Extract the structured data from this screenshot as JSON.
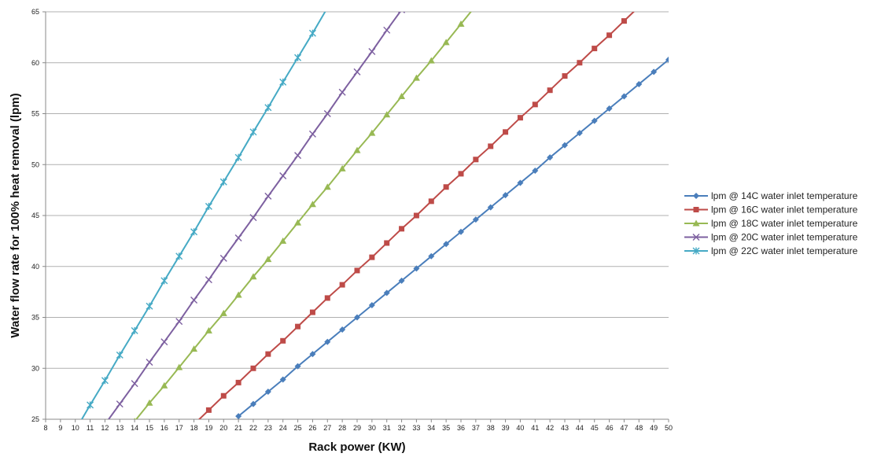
{
  "chart_data": {
    "type": "line",
    "xlabel": "Rack power  (KW)",
    "ylabel": "Water flow rate  for 100% heat removal  (lpm)",
    "xlim": [
      8,
      50
    ],
    "ylim": [
      25,
      65
    ],
    "xticks": [
      8,
      9,
      10,
      11,
      12,
      13,
      14,
      15,
      16,
      17,
      18,
      19,
      20,
      21,
      22,
      23,
      24,
      25,
      26,
      27,
      28,
      29,
      30,
      31,
      32,
      33,
      34,
      35,
      36,
      37,
      38,
      39,
      40,
      41,
      42,
      43,
      44,
      45,
      46,
      47,
      48,
      49,
      50
    ],
    "yticks": [
      25,
      30,
      35,
      40,
      45,
      50,
      55,
      60,
      65
    ],
    "grid": "horizontal",
    "legend_position": "right",
    "series": [
      {
        "name": "lpm @ 14C water inlet temperature",
        "color": "#4a7ebb",
        "marker": "diamond",
        "x": [
          21,
          22,
          23,
          24,
          25,
          26,
          27,
          28,
          29,
          30,
          31,
          32,
          33,
          34,
          35,
          36,
          37,
          38,
          39,
          40,
          41,
          42,
          43,
          44,
          45,
          46,
          47,
          48,
          49,
          50
        ],
        "y": [
          25.3,
          26.5,
          27.7,
          28.9,
          30.2,
          31.4,
          32.6,
          33.8,
          35.0,
          36.2,
          37.4,
          38.6,
          39.8,
          41.0,
          42.2,
          43.4,
          44.6,
          45.8,
          47.0,
          48.2,
          49.4,
          50.7,
          51.9,
          53.1,
          54.3,
          55.5,
          56.7,
          57.9,
          59.1,
          60.3
        ]
      },
      {
        "name": "lpm @ 16C water inlet temperature",
        "color": "#be4b48",
        "marker": "square",
        "x": [
          18,
          19,
          20,
          21,
          22,
          23,
          24,
          25,
          26,
          27,
          28,
          29,
          30,
          31,
          32,
          33,
          34,
          35,
          36,
          37,
          38,
          39,
          40,
          41,
          42,
          43,
          44,
          45,
          46,
          47,
          48
        ],
        "y": [
          24.5,
          25.9,
          27.3,
          28.6,
          30.0,
          31.4,
          32.7,
          34.1,
          35.5,
          36.9,
          38.2,
          39.6,
          40.9,
          42.3,
          43.7,
          45.0,
          46.4,
          47.8,
          49.1,
          50.5,
          51.8,
          53.2,
          54.6,
          55.9,
          57.3,
          58.7,
          60.0,
          61.4,
          62.7,
          64.1,
          65.5
        ]
      },
      {
        "name": "lpm @ 18C water inlet temperature",
        "color": "#98b954",
        "marker": "triangle",
        "x": [
          14,
          15,
          16,
          17,
          18,
          19,
          20,
          21,
          22,
          23,
          24,
          25,
          26,
          27,
          28,
          29,
          30,
          31,
          32,
          33,
          34,
          35,
          36,
          37
        ],
        "y": [
          24.8,
          26.6,
          28.3,
          30.1,
          31.9,
          33.7,
          35.4,
          37.2,
          39.0,
          40.7,
          42.5,
          44.3,
          46.1,
          47.8,
          49.6,
          51.4,
          53.1,
          54.9,
          56.7,
          58.5,
          60.2,
          62.0,
          63.8,
          65.6
        ]
      },
      {
        "name": "lpm @ 20C water inlet temperature",
        "color": "#7d60a0",
        "marker": "x",
        "x": [
          12,
          13,
          14,
          15,
          16,
          17,
          18,
          19,
          20,
          21,
          22,
          23,
          24,
          25,
          26,
          27,
          28,
          29,
          30,
          31,
          32
        ],
        "y": [
          24.5,
          26.5,
          28.5,
          30.6,
          32.6,
          34.6,
          36.7,
          38.7,
          40.8,
          42.8,
          44.8,
          46.9,
          48.9,
          50.9,
          53.0,
          55.0,
          57.1,
          59.1,
          61.1,
          63.2,
          65.2
        ]
      },
      {
        "name": "lpm @ 22C water inlet temperature",
        "color": "#46aac5",
        "marker": "asterisk",
        "x": [
          10,
          11,
          12,
          13,
          14,
          15,
          16,
          17,
          18,
          19,
          20,
          21,
          22,
          23,
          24,
          25,
          26,
          27
        ],
        "y": [
          23.9,
          26.4,
          28.8,
          31.3,
          33.7,
          36.1,
          38.6,
          41.0,
          43.4,
          45.9,
          48.3,
          50.7,
          53.2,
          55.6,
          58.1,
          60.5,
          62.9,
          65.4
        ]
      }
    ]
  }
}
